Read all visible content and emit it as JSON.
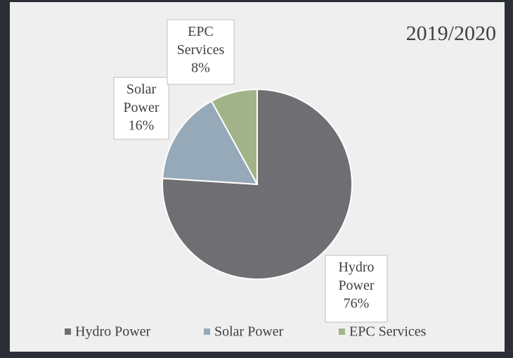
{
  "chart_data": {
    "type": "pie",
    "title": "2019/2020",
    "categories": [
      "Hydro Power",
      "Solar Power",
      "EPC Services"
    ],
    "values": [
      76,
      16,
      8
    ],
    "value_labels": [
      "76%",
      "16%",
      "8%"
    ],
    "colors": [
      "#6f6e73",
      "#95a9b8",
      "#a2b38a"
    ],
    "legend": "bottom"
  }
}
